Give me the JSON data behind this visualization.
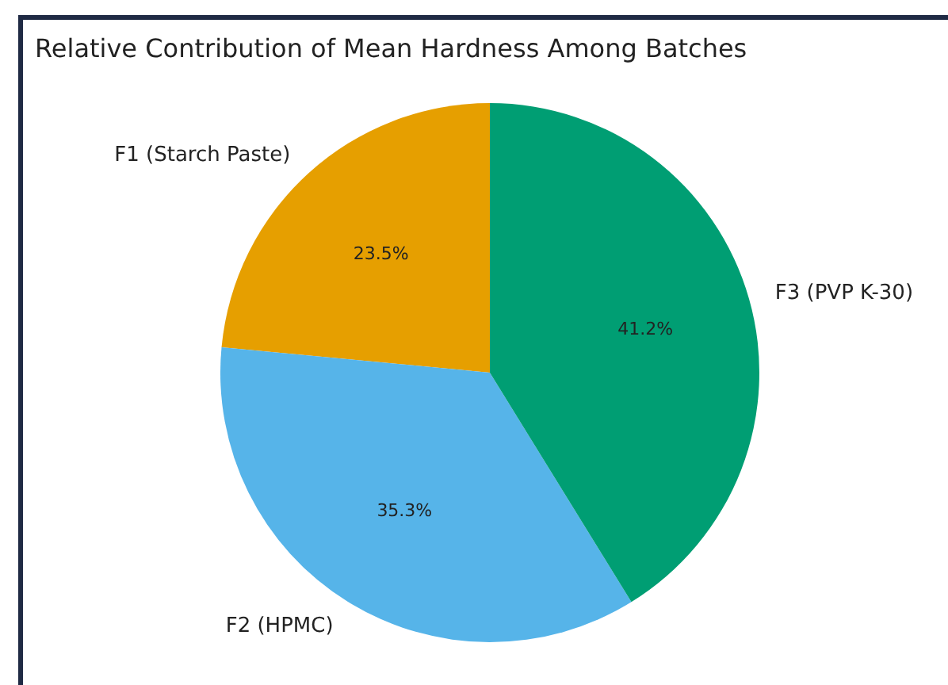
{
  "chart_data": {
    "type": "pie",
    "title": "Relative Contribution of Mean Hardness Among Batches",
    "categories": [
      "F1 (Starch Paste)",
      "F2 (HPMC)",
      "F3 (PVP K-30)"
    ],
    "values": [
      23.5,
      35.3,
      41.2
    ],
    "colors": [
      "#e69f00",
      "#56b4e9",
      "#009e73"
    ],
    "value_labels": [
      "23.5%",
      "35.3%",
      "41.2%"
    ]
  }
}
